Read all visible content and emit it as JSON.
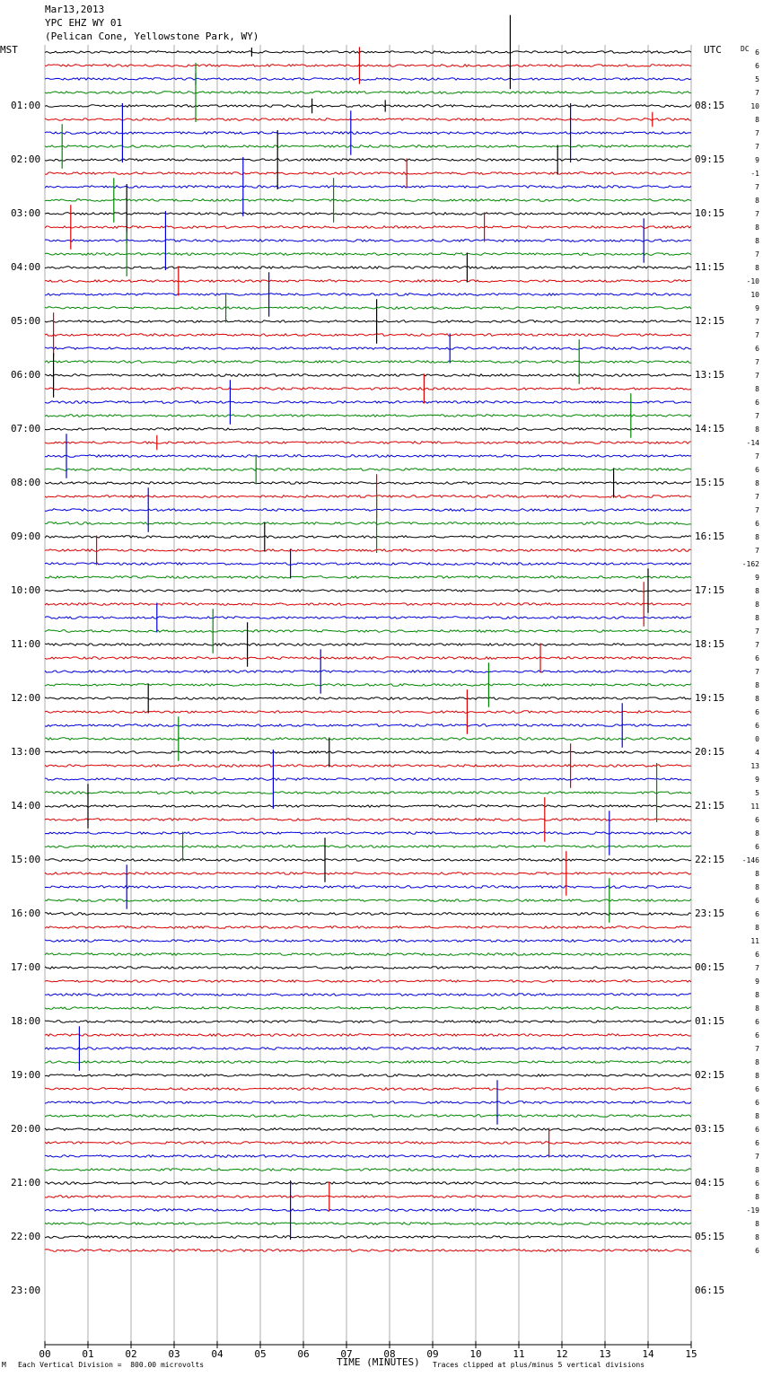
{
  "header": {
    "date": "Mar13,2013",
    "station": "YPC EHZ WY 01",
    "location": "(Pelican Cone, Yellowstone Park, WY)"
  },
  "left_axis_title": "MST",
  "right_axis_title": "UTC",
  "dc_title": "DC",
  "xlabel": "TIME (MINUTES)",
  "footer": {
    "division": "Each Vertical Division =  800.00 microvolts",
    "clip": "Traces clipped at plus/minus 5 vertical divisions",
    "mark": "M"
  },
  "chart_data": {
    "type": "line",
    "title": "YPC EHZ WY 01",
    "xlabel": "TIME (MINUTES)",
    "xlim": [
      0,
      15
    ],
    "x_ticks": [
      "00",
      "01",
      "02",
      "03",
      "04",
      "05",
      "06",
      "07",
      "08",
      "09",
      "10",
      "11",
      "12",
      "13",
      "14",
      "15"
    ],
    "minutes_per_trace": 15,
    "trace_colors": [
      "#000000",
      "#dd0000",
      "#0000dd",
      "#008800"
    ],
    "mst_hour_labels": [
      "01:00",
      "02:00",
      "03:00",
      "04:00",
      "05:00",
      "06:00",
      "07:00",
      "08:00",
      "09:00",
      "10:00",
      "11:00",
      "12:00",
      "13:00",
      "14:00",
      "15:00",
      "16:00",
      "17:00",
      "18:00",
      "19:00",
      "20:00",
      "21:00",
      "22:00",
      "23:00"
    ],
    "utc_hour_labels": [
      "08:15",
      "09:15",
      "10:15",
      "11:15",
      "12:15",
      "13:15",
      "14:15",
      "15:15",
      "16:15",
      "17:15",
      "18:15",
      "19:15",
      "20:15",
      "21:15",
      "22:15",
      "23:15",
      "00:15",
      "01:15",
      "02:15",
      "03:15",
      "04:15",
      "05:15",
      "06:15"
    ],
    "dc_offsets": [
      "6",
      "6",
      "5",
      "7",
      "10",
      "8",
      "7",
      "7",
      "9",
      "-1",
      "7",
      "8",
      "7",
      "8",
      "8",
      "7",
      "8",
      "-10",
      "10",
      "9",
      "7",
      "7",
      "6",
      "7",
      "7",
      "8",
      "6",
      "7",
      "8",
      "-14",
      "7",
      "6",
      "8",
      "7",
      "7",
      "6",
      "8",
      "7",
      "-162",
      "9",
      "8",
      "8",
      "8",
      "7",
      "7",
      "6",
      "7",
      "8",
      "8",
      "6",
      "6",
      "0",
      "4",
      "13",
      "9",
      "5",
      "11",
      "6",
      "8",
      "6",
      "-146",
      "8",
      "8",
      "6",
      "6",
      "8",
      "11",
      "6",
      "7",
      "9",
      "8",
      "8",
      "6",
      "6",
      "7",
      "8",
      "8",
      "6",
      "6",
      "8",
      "6",
      "6",
      "7",
      "8",
      "6",
      "8",
      "-19",
      "8",
      "8",
      "6"
    ],
    "spikes": [
      {
        "trace": 0,
        "minute": 10.8,
        "amp": 5
      },
      {
        "trace": 0,
        "minute": 4.8,
        "amp": 0.6
      },
      {
        "trace": 1,
        "minute": 7.3,
        "amp": 2.5
      },
      {
        "trace": 2,
        "minute": 3.5,
        "amp": 0.8
      },
      {
        "trace": 3,
        "minute": 3.5,
        "amp": 4
      },
      {
        "trace": 4,
        "minute": 6.2,
        "amp": 1
      },
      {
        "trace": 4,
        "minute": 7.9,
        "amp": 0.8
      },
      {
        "trace": 5,
        "minute": 14.1,
        "amp": 1
      },
      {
        "trace": 6,
        "minute": 1.8,
        "amp": 4
      },
      {
        "trace": 6,
        "minute": 7.1,
        "amp": 3
      },
      {
        "trace": 6,
        "minute": 12.2,
        "amp": 4
      },
      {
        "trace": 7,
        "minute": 0.4,
        "amp": 3
      },
      {
        "trace": 8,
        "minute": 5.4,
        "amp": 4
      },
      {
        "trace": 8,
        "minute": 11.9,
        "amp": 2
      },
      {
        "trace": 9,
        "minute": 8.4,
        "amp": 2
      },
      {
        "trace": 10,
        "minute": 4.6,
        "amp": 4
      },
      {
        "trace": 11,
        "minute": 1.6,
        "amp": 3
      },
      {
        "trace": 11,
        "minute": 6.7,
        "amp": 3
      },
      {
        "trace": 12,
        "minute": 1.9,
        "amp": 4
      },
      {
        "trace": 13,
        "minute": 0.6,
        "amp": 3
      },
      {
        "trace": 13,
        "minute": 10.2,
        "amp": 2
      },
      {
        "trace": 14,
        "minute": 2.8,
        "amp": 4
      },
      {
        "trace": 14,
        "minute": 13.9,
        "amp": 3
      },
      {
        "trace": 15,
        "minute": 1.9,
        "amp": 3
      },
      {
        "trace": 16,
        "minute": 9.8,
        "amp": 2
      },
      {
        "trace": 17,
        "minute": 3.1,
        "amp": 2
      },
      {
        "trace": 18,
        "minute": 5.2,
        "amp": 3
      },
      {
        "trace": 19,
        "minute": 4.2,
        "amp": 2
      },
      {
        "trace": 20,
        "minute": 7.7,
        "amp": 3
      },
      {
        "trace": 21,
        "minute": 0.2,
        "amp": 3
      },
      {
        "trace": 22,
        "minute": 9.4,
        "amp": 2
      },
      {
        "trace": 23,
        "minute": 12.4,
        "amp": 3
      },
      {
        "trace": 24,
        "minute": 0.2,
        "amp": 3
      },
      {
        "trace": 25,
        "minute": 8.8,
        "amp": 2
      },
      {
        "trace": 26,
        "minute": 4.3,
        "amp": 3
      },
      {
        "trace": 27,
        "minute": 13.6,
        "amp": 3
      },
      {
        "trace": 29,
        "minute": 2.6,
        "amp": 1
      },
      {
        "trace": 30,
        "minute": 0.5,
        "amp": 3
      },
      {
        "trace": 31,
        "minute": 4.9,
        "amp": 2
      },
      {
        "trace": 32,
        "minute": 13.2,
        "amp": 2
      },
      {
        "trace": 33,
        "minute": 7.7,
        "amp": 3
      },
      {
        "trace": 34,
        "minute": 2.4,
        "amp": 3
      },
      {
        "trace": 35,
        "minute": 7.7,
        "amp": 4
      },
      {
        "trace": 36,
        "minute": 5.1,
        "amp": 2
      },
      {
        "trace": 37,
        "minute": 1.2,
        "amp": 2
      },
      {
        "trace": 38,
        "minute": 5.7,
        "amp": 2
      },
      {
        "trace": 40,
        "minute": 14.0,
        "amp": 3
      },
      {
        "trace": 41,
        "minute": 13.9,
        "amp": 3
      },
      {
        "trace": 42,
        "minute": 2.6,
        "amp": 2
      },
      {
        "trace": 43,
        "minute": 3.9,
        "amp": 3
      },
      {
        "trace": 44,
        "minute": 4.7,
        "amp": 3
      },
      {
        "trace": 45,
        "minute": 11.5,
        "amp": 2
      },
      {
        "trace": 46,
        "minute": 6.4,
        "amp": 3
      },
      {
        "trace": 47,
        "minute": 10.3,
        "amp": 3
      },
      {
        "trace": 48,
        "minute": 2.4,
        "amp": 2
      },
      {
        "trace": 49,
        "minute": 9.8,
        "amp": 3
      },
      {
        "trace": 50,
        "minute": 13.4,
        "amp": 3
      },
      {
        "trace": 51,
        "minute": 3.1,
        "amp": 3
      },
      {
        "trace": 52,
        "minute": 6.6,
        "amp": 2
      },
      {
        "trace": 53,
        "minute": 12.2,
        "amp": 3
      },
      {
        "trace": 54,
        "minute": 5.3,
        "amp": 4
      },
      {
        "trace": 55,
        "minute": 14.2,
        "amp": 4
      },
      {
        "trace": 56,
        "minute": 1.0,
        "amp": 3
      },
      {
        "trace": 57,
        "minute": 11.6,
        "amp": 3
      },
      {
        "trace": 58,
        "minute": 13.1,
        "amp": 3
      },
      {
        "trace": 59,
        "minute": 3.2,
        "amp": 2
      },
      {
        "trace": 60,
        "minute": 6.5,
        "amp": 3
      },
      {
        "trace": 61,
        "minute": 12.1,
        "amp": 3
      },
      {
        "trace": 62,
        "minute": 1.9,
        "amp": 3
      },
      {
        "trace": 63,
        "minute": 13.1,
        "amp": 3
      },
      {
        "trace": 74,
        "minute": 0.8,
        "amp": 3
      },
      {
        "trace": 78,
        "minute": 10.5,
        "amp": 3
      },
      {
        "trace": 81,
        "minute": 11.7,
        "amp": 2
      },
      {
        "trace": 85,
        "minute": 6.6,
        "amp": 2
      },
      {
        "trace": 86,
        "minute": 5.7,
        "amp": 4
      }
    ]
  }
}
